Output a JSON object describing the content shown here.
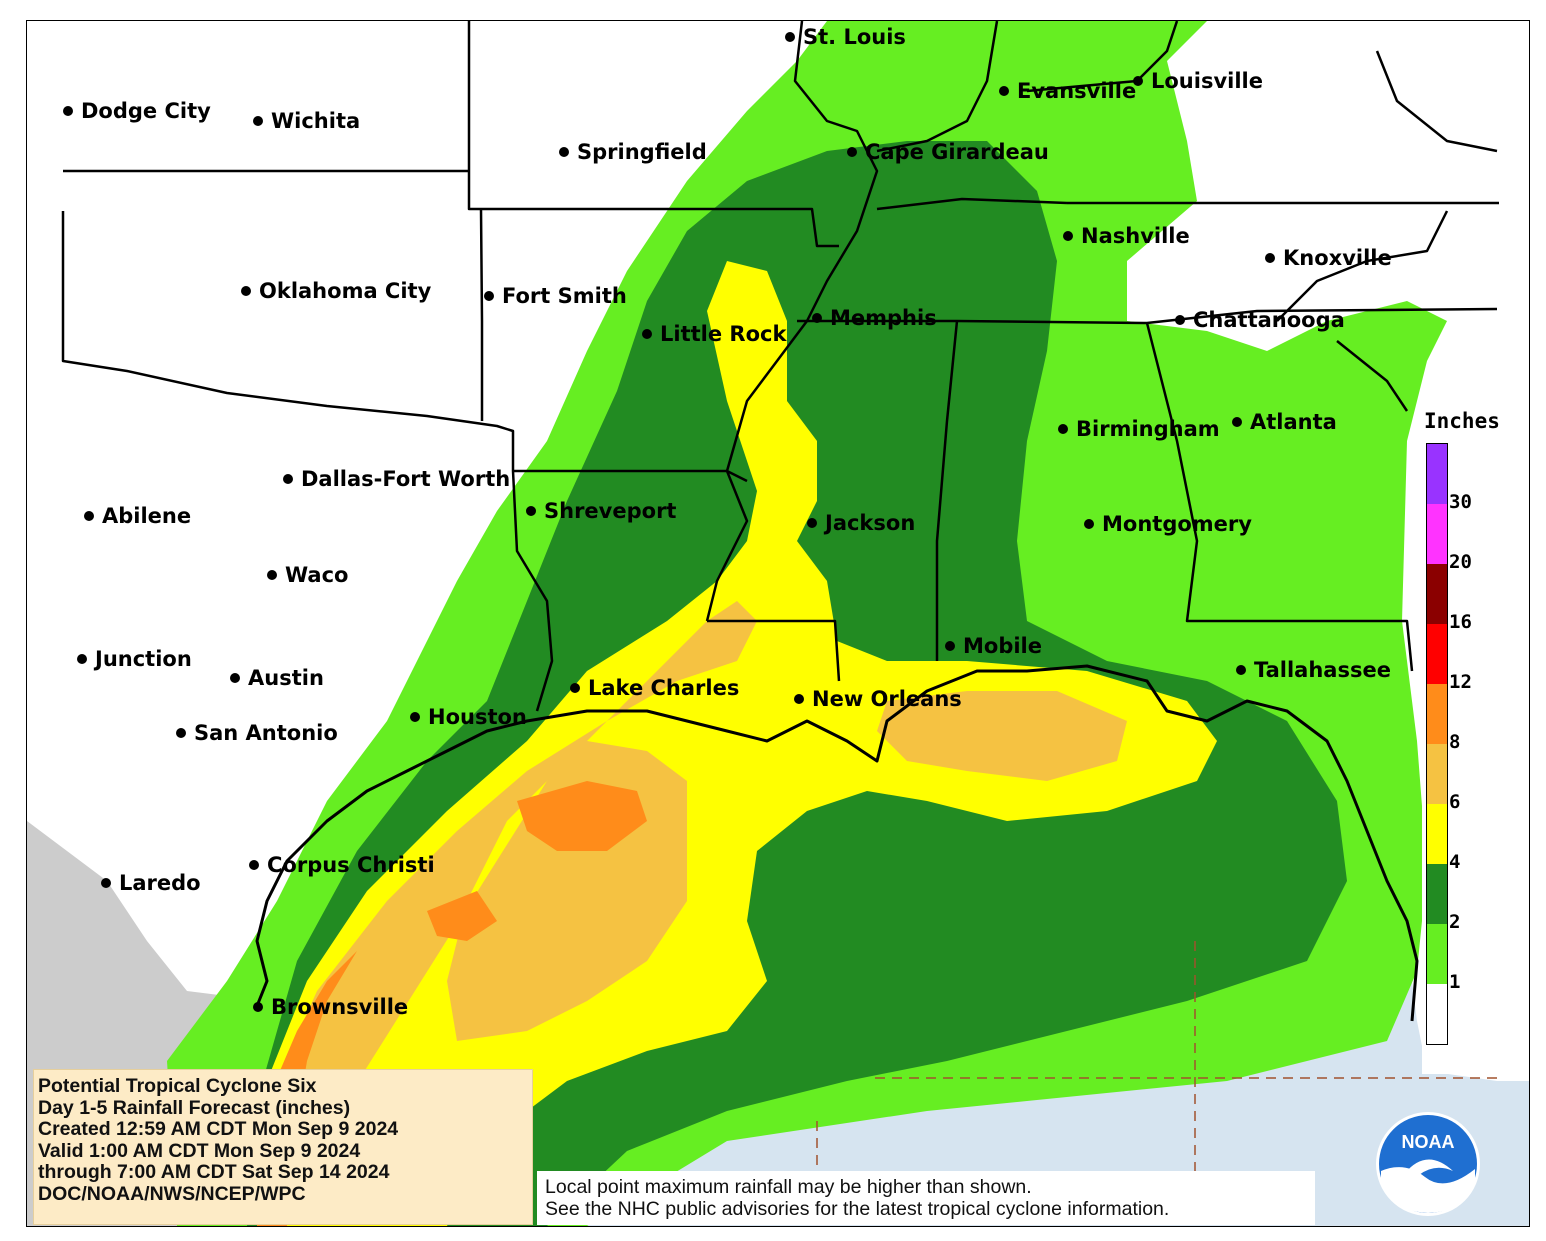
{
  "map": {
    "ocean_color": "#d6e4f0",
    "land_color": "#ffffff",
    "mexico_color": "#cccccc",
    "boundary_color": "#000000",
    "grid_color": "#a0522d"
  },
  "cities": [
    {
      "id": "st-louis",
      "name": "St. Louis"
    },
    {
      "id": "evansville",
      "name": "Evansville"
    },
    {
      "id": "louisville",
      "name": "Louisville"
    },
    {
      "id": "dodge-city",
      "name": "Dodge City"
    },
    {
      "id": "wichita",
      "name": "Wichita"
    },
    {
      "id": "springfield",
      "name": "Springfield"
    },
    {
      "id": "cape-girardeau",
      "name": "Cape Girardeau"
    },
    {
      "id": "nashville",
      "name": "Nashville"
    },
    {
      "id": "knoxville",
      "name": "Knoxville"
    },
    {
      "id": "oklahoma-city",
      "name": "Oklahoma City"
    },
    {
      "id": "fort-smith",
      "name": "Fort Smith"
    },
    {
      "id": "memphis",
      "name": "Memphis"
    },
    {
      "id": "little-rock",
      "name": "Little Rock"
    },
    {
      "id": "chattanooga",
      "name": "Chattanooga"
    },
    {
      "id": "birmingham",
      "name": "Birmingham"
    },
    {
      "id": "atlanta",
      "name": "Atlanta"
    },
    {
      "id": "dallas-fort-worth",
      "name": "Dallas-Fort Worth"
    },
    {
      "id": "abilene",
      "name": "Abilene"
    },
    {
      "id": "shreveport",
      "name": "Shreveport"
    },
    {
      "id": "jackson",
      "name": "Jackson"
    },
    {
      "id": "montgomery",
      "name": "Montgomery"
    },
    {
      "id": "waco",
      "name": "Waco"
    },
    {
      "id": "junction",
      "name": "Junction"
    },
    {
      "id": "austin",
      "name": "Austin"
    },
    {
      "id": "mobile",
      "name": "Mobile"
    },
    {
      "id": "tallahassee",
      "name": "Tallahassee"
    },
    {
      "id": "lake-charles",
      "name": "Lake Charles"
    },
    {
      "id": "new-orleans",
      "name": "New Orleans"
    },
    {
      "id": "houston",
      "name": "Houston"
    },
    {
      "id": "san-antonio",
      "name": "San Antonio"
    },
    {
      "id": "corpus-christi",
      "name": "Corpus Christi"
    },
    {
      "id": "laredo",
      "name": "Laredo"
    },
    {
      "id": "brownsville",
      "name": "Brownsville"
    }
  ],
  "legend": {
    "title": "Inches",
    "ticks": [
      "30",
      "20",
      "16",
      "12",
      "8",
      "6",
      "4",
      "2",
      "1"
    ],
    "bins": [
      {
        "label": "30+",
        "color": "#9933ff"
      },
      {
        "label": "20-30",
        "color": "#ff33ff"
      },
      {
        "label": "16-20",
        "color": "#8b0000"
      },
      {
        "label": "12-16",
        "color": "#ff0000"
      },
      {
        "label": "8-12",
        "color": "#ff8c1a"
      },
      {
        "label": "6-8",
        "color": "#f5c242"
      },
      {
        "label": "4-6",
        "color": "#ffff00"
      },
      {
        "label": "2-4",
        "color": "#228b22"
      },
      {
        "label": "1-2",
        "color": "#66ee22"
      },
      {
        "label": "0-1",
        "color": "#ffffff"
      }
    ]
  },
  "info": {
    "line1": "Potential Tropical Cyclone Six",
    "line2": "Day 1-5 Rainfall Forecast (inches)",
    "line3": "Created 12:59 AM CDT Mon Sep 9 2024",
    "line4": "Valid 1:00 AM CDT Mon Sep 9 2024",
    "line5": "through 7:00 AM CDT Sat Sep 14 2024",
    "line6": "DOC/NOAA/NWS/NCEP/WPC"
  },
  "disclaimer": {
    "line1": "Local point maximum rainfall may be higher than shown.",
    "line2": "See the NHC public advisories for the latest tropical cyclone information."
  },
  "logo": {
    "text": "NOAA",
    "icon": "noaa-logo-icon"
  }
}
